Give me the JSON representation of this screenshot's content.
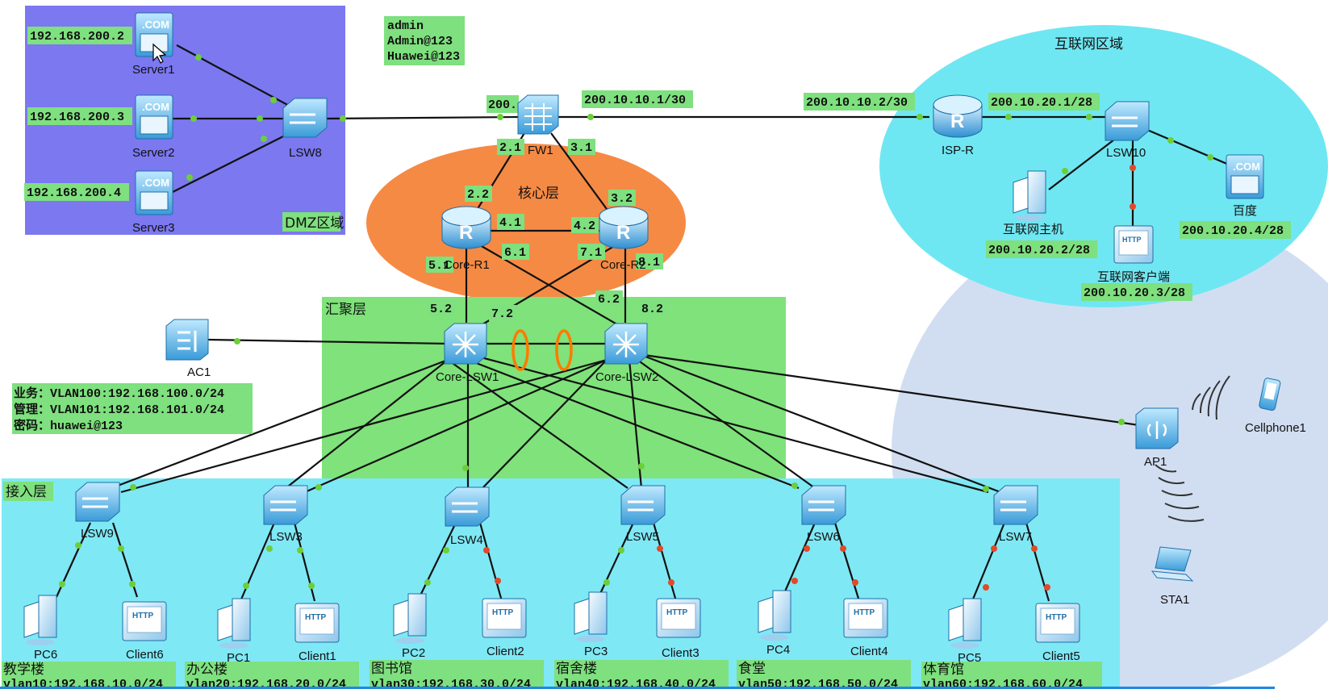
{
  "zones": {
    "dmz": "DMZ区域",
    "internet": "互联网区域",
    "core": "核心层",
    "aggregation": "汇聚层",
    "access": "接入层"
  },
  "credentials": [
    "admin",
    "Admin@123",
    "Huawei@123"
  ],
  "wlan_note": [
    "业务：VLAN100:192.168.100.0/24",
    "管理：VLAN101:192.168.101.0/24",
    "密码：huawei@123"
  ],
  "devices": {
    "server1": "Server1",
    "server2": "Server2",
    "server3": "Server3",
    "lsw8": "LSW8",
    "fw1": "FW1",
    "core_r1": "Core-R1",
    "core_r2": "Core-R2",
    "core_lsw1": "Core-LSW1",
    "core_lsw2": "Core-LSW2",
    "ac1": "AC1",
    "isp_r": "ISP-R",
    "lsw10": "LSW10",
    "internet_host": "互联网主机",
    "internet_client": "互联网客户端",
    "baidu": "百度",
    "ap1": "AP1",
    "cellphone1": "Cellphone1",
    "sta1": "STA1",
    "lsw9": "LSW9",
    "lsw3": "LSW3",
    "lsw4": "LSW4",
    "lsw5": "LSW5",
    "lsw6": "LSW6",
    "lsw7": "LSW7",
    "pc6": "PC6",
    "client6": "Client6",
    "pc1": "PC1",
    "client1": "Client1",
    "pc2": "PC2",
    "client2": "Client2",
    "pc3": "PC3",
    "client3": "Client3",
    "pc4": "PC4",
    "client4": "Client4",
    "pc5": "PC5",
    "client5": "Client5"
  },
  "addresses": {
    "server1": "192.168.200.2",
    "server2": "192.168.200.3",
    "server3": "192.168.200.4",
    "fw_left": "200.",
    "fw_right": "200.10.10.1/30",
    "isp_left": "200.10.10.2/30",
    "isp_right": "200.10.20.1/28",
    "internet_host": "200.10.20.2/28",
    "internet_client": "200.10.20.3/28",
    "baidu": "200.10.20.4/28",
    "p21": "2.1",
    "p31": "3.1",
    "p22": "2.2",
    "p32": "3.2",
    "p41": "4.1",
    "p42": "4.2",
    "p51": "5.1",
    "p61": "6.1",
    "p71": "7.1",
    "p81": "8.1",
    "p52": "5.2",
    "p72": "7.2",
    "p62": "6.2",
    "p82": "8.2"
  },
  "buildings": [
    {
      "name": "教学楼",
      "vlan": "vlan10:192.168.10.0/24"
    },
    {
      "name": "办公楼",
      "vlan": "vlan20:192.168.20.0/24"
    },
    {
      "name": "图书馆",
      "vlan": "vlan30:192.168.30.0/24"
    },
    {
      "name": "宿舍楼",
      "vlan": "vlan40:192.168.40.0/24"
    },
    {
      "name": "食堂",
      "vlan": "vlan50:192.168.50.0/24"
    },
    {
      "name": "体育馆",
      "vlan": "vlan60:192.168.60.0/24"
    }
  ],
  "colors": {
    "dmz": "#7b78f0",
    "internet": "#6fe7f2",
    "core": "#f58a44",
    "aggregation": "#7fe27a",
    "access": "#7fe8f5",
    "wireless": "#c9d8ee",
    "label_bg": "#7ee07e"
  }
}
